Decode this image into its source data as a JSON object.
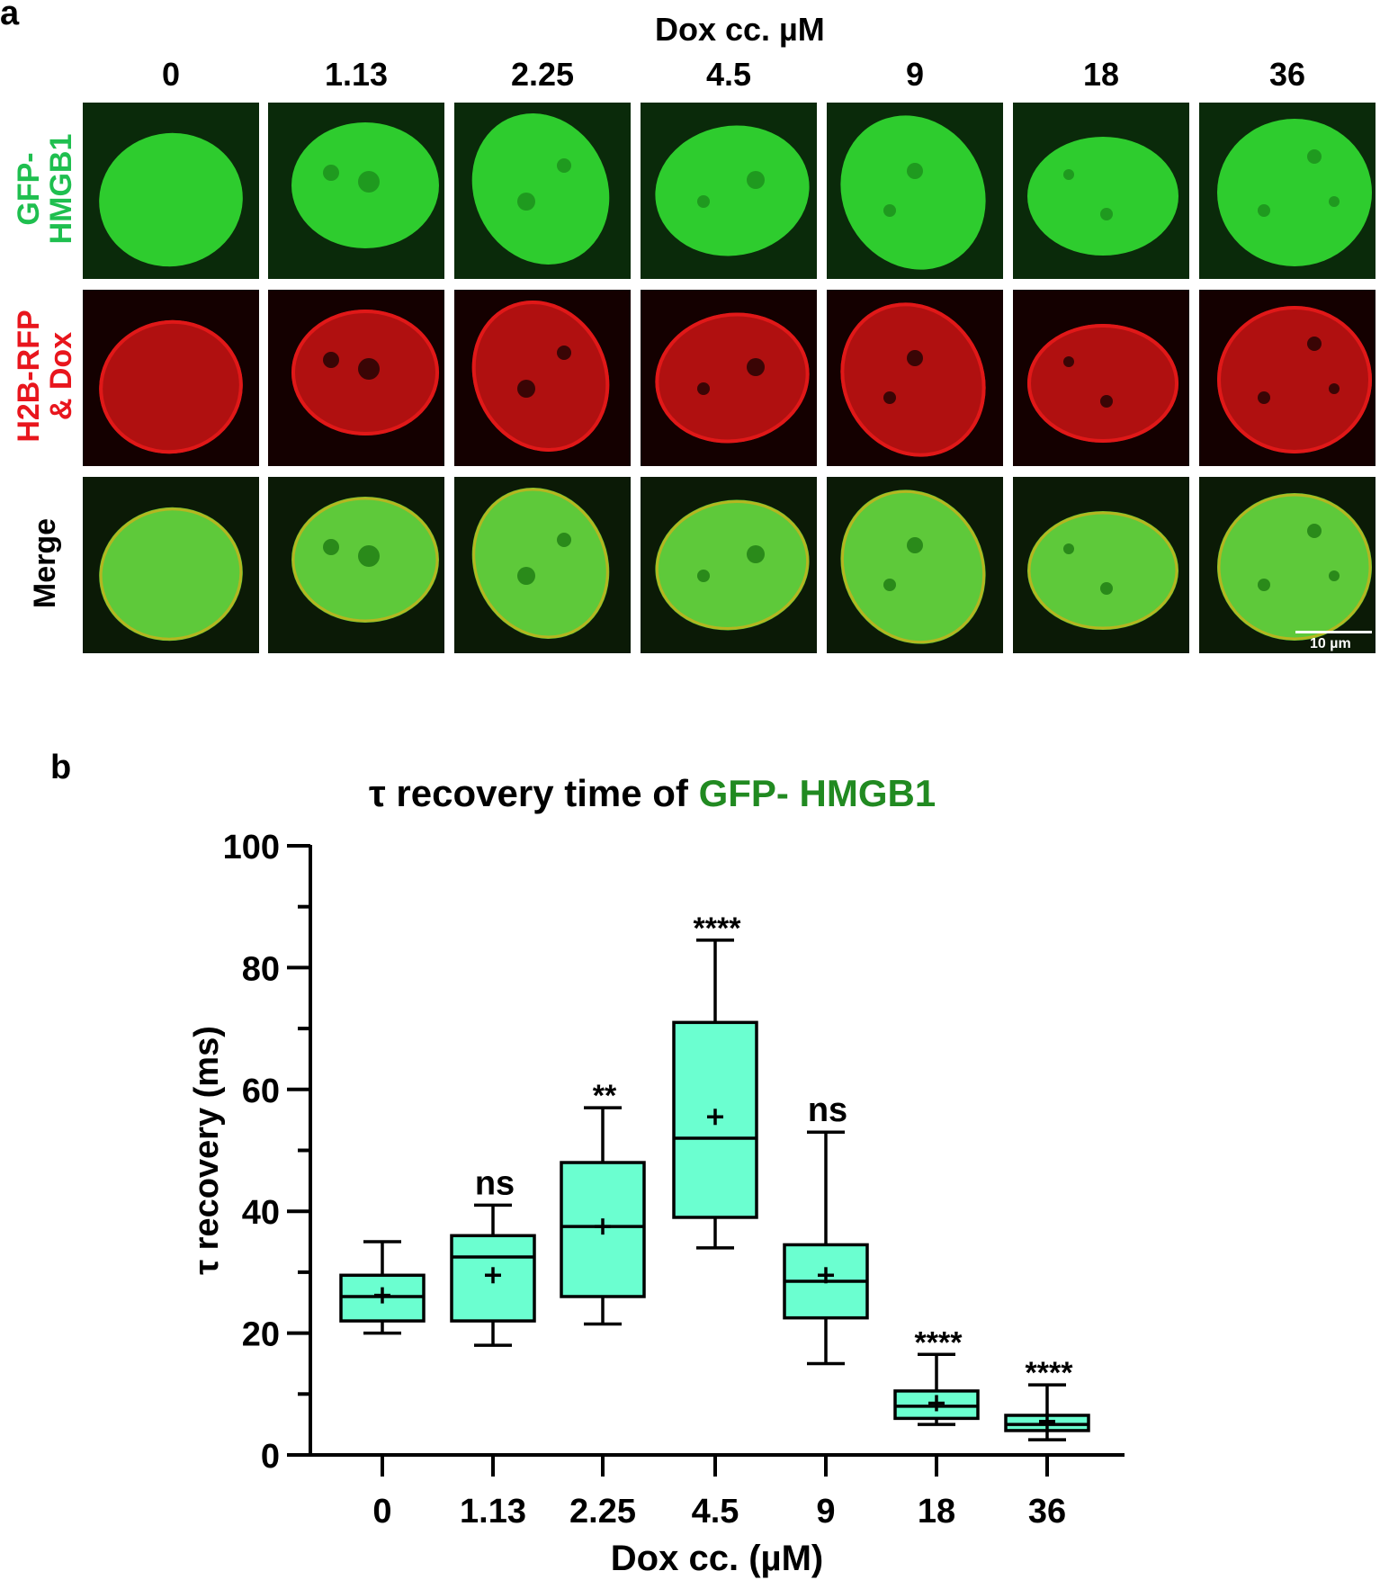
{
  "panel_a": {
    "letter": "a",
    "header": "Dox cc. µM",
    "columns": [
      "0",
      "1.13",
      "2.25",
      "4.5",
      "9",
      "18",
      "36"
    ],
    "rows": [
      {
        "lines": [
          "GFP-",
          "HMGB1"
        ],
        "color": "#1fbf4f"
      },
      {
        "lines": [
          "H2B-RFP",
          "& Dox"
        ],
        "color": "#e8161d"
      },
      {
        "lines": [
          "Merge"
        ],
        "color": "#000000"
      }
    ],
    "scale_bar": "10 µm",
    "channel_colors": {
      "gfp": "#2ecc2e",
      "rfp": "#e01818",
      "merge_bg": "#0b1a06"
    }
  },
  "panel_b": {
    "letter": "b",
    "title_prefix": "τ recovery  time of ",
    "title_highlight": "GFP- HMGB1",
    "title_highlight_color": "#218a21"
  },
  "chart_data": {
    "type": "box",
    "title": "τ recovery  time of GFP- HMGB1",
    "xlabel": "Dox cc. (µM)",
    "ylabel": "τ recovery (ms)",
    "ylim": [
      0,
      100
    ],
    "yticks": [
      0,
      20,
      40,
      60,
      80,
      100
    ],
    "box_color": "#6bffd0",
    "categories": [
      "0",
      "1.13",
      "2.25",
      "4.5",
      "9",
      "18",
      "36"
    ],
    "boxes": [
      {
        "min": 20,
        "q1": 22,
        "median": 26,
        "q3": 29.5,
        "max": 35,
        "mean": 26.2,
        "sig": ""
      },
      {
        "min": 18,
        "q1": 22,
        "median": 32.5,
        "q3": 36,
        "max": 41,
        "mean": 29.5,
        "sig": "ns"
      },
      {
        "min": 21.5,
        "q1": 26,
        "median": 37.5,
        "q3": 48,
        "max": 57,
        "mean": 37.5,
        "sig": "**"
      },
      {
        "min": 34,
        "q1": 39,
        "median": 52,
        "q3": 71,
        "max": 84.5,
        "mean": 55.5,
        "sig": "****"
      },
      {
        "min": 15,
        "q1": 22.5,
        "median": 28.5,
        "q3": 34.5,
        "max": 53,
        "mean": 29.5,
        "sig": "ns"
      },
      {
        "min": 5,
        "q1": 6,
        "median": 8,
        "q3": 10.5,
        "max": 16.5,
        "mean": 8.5,
        "sig": "****"
      },
      {
        "min": 2.5,
        "q1": 4,
        "median": 5,
        "q3": 6.5,
        "max": 11.5,
        "mean": 5.5,
        "sig": "****"
      }
    ]
  }
}
